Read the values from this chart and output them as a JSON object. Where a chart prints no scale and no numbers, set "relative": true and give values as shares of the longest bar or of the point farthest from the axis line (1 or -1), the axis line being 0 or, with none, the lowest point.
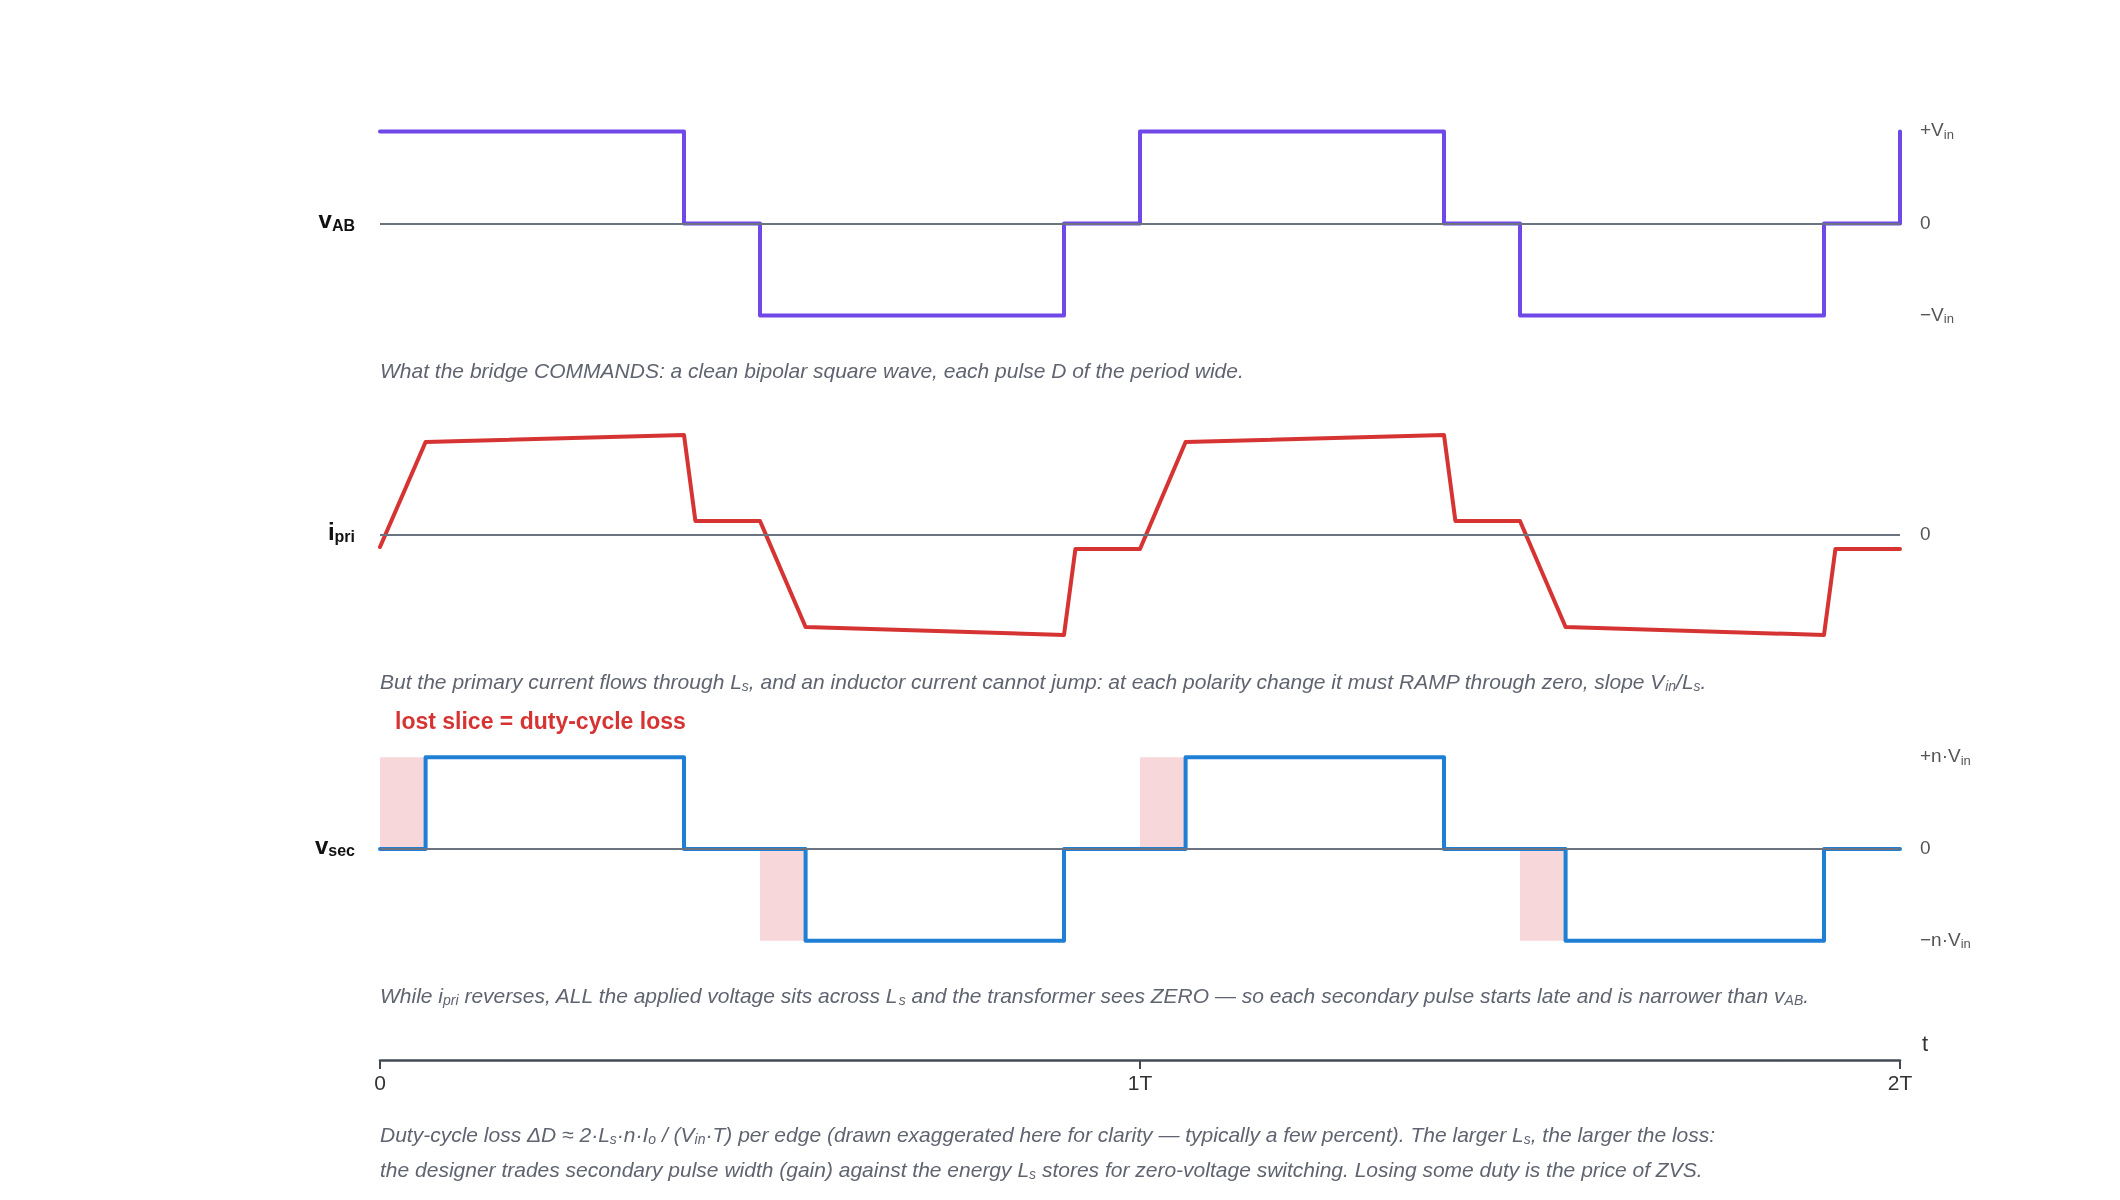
{
  "chart_data": [
    {
      "type": "step",
      "relative": true,
      "ylabel": "v$_{AB}$",
      "x": [
        0,
        0.4,
        0.5,
        0.9,
        1.0,
        1.4,
        1.5,
        1.9,
        2.0
      ],
      "xlim": [
        0,
        2
      ],
      "series": [
        {
          "color": "#7048e8",
          "values": [
            1,
            0,
            -1,
            0,
            1,
            0,
            -1,
            0,
            1
          ]
        }
      ],
      "ref_lines": [
        {
          "axis": "y",
          "value": 0,
          "color": "#6b7280"
        }
      ],
      "annotations": [
        "+V$_{in}$",
        "0",
        "−V$_{in}$",
        "What the bridge COMMANDS: a clean bipolar square wave, each pulse D of the period wide."
      ],
      "tick_labels": false,
      "grid": false,
      "marker": "none",
      "line_style": "solid"
    },
    {
      "type": "line",
      "relative": true,
      "ylabel": "i$_{pri}$",
      "x": [
        0,
        0.06,
        0.4,
        0.415,
        0.5,
        0.56,
        0.9,
        0.915,
        1.0,
        1.06,
        1.4,
        1.415,
        1.5,
        1.56,
        1.9,
        1.915,
        2.0
      ],
      "xlim": [
        0,
        2
      ],
      "series": [
        {
          "color": "#d63333",
          "values": [
            -0.12,
            0.93,
            1,
            0.14,
            0.14,
            -0.92,
            -1,
            -0.14,
            -0.14,
            0.93,
            1,
            0.14,
            0.14,
            -0.92,
            -1,
            -0.14,
            -0.14
          ]
        }
      ],
      "ref_lines": [
        {
          "axis": "y",
          "value": 0,
          "color": "#6b7280"
        }
      ],
      "annotations": [
        "0",
        "But the primary current flows through L$_{s}$, and an inductor current cannot jump: at each polarity change it must RAMP through zero, slope V$_{in}$/L$_{s}$."
      ],
      "tick_labels": false,
      "grid": false,
      "marker": "none",
      "line_style": "solid"
    },
    {
      "type": "step",
      "relative": true,
      "ylabel": "v$_{sec}$",
      "xlabel": "t",
      "x": [
        0,
        0.06,
        0.4,
        0.56,
        0.9,
        1.06,
        1.4,
        1.56,
        1.9,
        2.0
      ],
      "xlim": [
        0,
        2
      ],
      "xticks": [
        0,
        {
          "value": 1,
          "label": "1T"
        },
        {
          "value": 2,
          "label": "2T"
        }
      ],
      "series": [
        {
          "color": "#1f7fd4",
          "values": [
            0,
            1,
            0,
            -1,
            0,
            1,
            0,
            -1,
            0,
            0
          ]
        }
      ],
      "ref_lines": [
        {
          "axis": "y",
          "value": 0,
          "color": "#6b7280"
        }
      ],
      "bands": [
        {
          "axis": "x",
          "from": 0,
          "to": 0.06,
          "label": "lost slice = duty-cycle loss",
          "color": "#f8d7da"
        },
        {
          "axis": "x",
          "from": 0.5,
          "to": 0.56,
          "color": "#f8d7da"
        },
        {
          "axis": "x",
          "from": 1.0,
          "to": 1.06,
          "color": "#f8d7da"
        },
        {
          "axis": "x",
          "from": 1.5,
          "to": 1.56,
          "color": "#f8d7da"
        }
      ],
      "annotations": [
        "+n·V$_{in}$",
        "0",
        "−n·V$_{in}$",
        "While i$_{pri}$ reverses, ALL the applied voltage sits across L$_{s}$ and the transformer sees ZERO — so each secondary pulse starts late and is narrower than v$_{AB}$.",
        "Duty-cycle loss ΔD ≈ 2·L$_{s}$·n·I$_{o}$ / (V$_{in}$·T) per edge (drawn exaggerated here for clarity — typically a few percent). The larger L$_{s}$, the larger the loss:",
        "the designer trades secondary pulse width (gain) against the energy L$_{s}$ stores for zero-voltage switching. Losing some duty is the price of ZVS."
      ],
      "grid": false,
      "marker": "none",
      "line_style": "solid"
    }
  ]
}
